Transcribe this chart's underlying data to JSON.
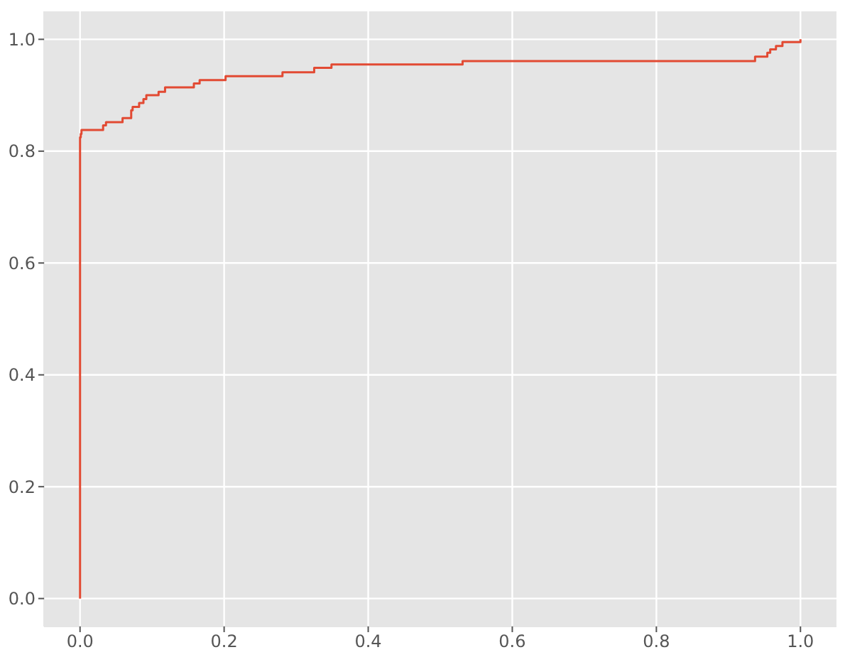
{
  "chart_data": {
    "type": "step",
    "x": [
      0,
      0,
      0.001,
      0.002,
      0.032,
      0.036,
      0.059,
      0.071,
      0.073,
      0.082,
      0.088,
      0.092,
      0.109,
      0.118,
      0.158,
      0.166,
      0.202,
      0.281,
      0.325,
      0.349,
      0.531,
      0.937,
      0.954,
      0.958,
      0.966,
      0.975,
      1.0
    ],
    "series": [
      {
        "color": "#e24a33",
        "values": [
          0,
          0.825,
          0.831,
          0.838,
          0.846,
          0.852,
          0.859,
          0.873,
          0.879,
          0.886,
          0.893,
          0.9,
          0.906,
          0.914,
          0.921,
          0.927,
          0.934,
          0.941,
          0.949,
          0.955,
          0.961,
          0.969,
          0.976,
          0.982,
          0.988,
          0.995,
          1.0
        ]
      }
    ],
    "xlim": [
      -0.05,
      1.05
    ],
    "ylim": [
      -0.05,
      1.05
    ],
    "xticks": [
      {
        "value": 0,
        "label": "0.0"
      },
      {
        "value": 0.2,
        "label": "0.2"
      },
      {
        "value": 0.4,
        "label": "0.4"
      },
      {
        "value": 0.6,
        "label": "0.6"
      },
      {
        "value": 0.8,
        "label": "0.8"
      },
      {
        "value": 1,
        "label": "1.0"
      }
    ],
    "yticks": [
      {
        "value": 0,
        "label": "0.0"
      },
      {
        "value": 0.2,
        "label": "0.2"
      },
      {
        "value": 0.4,
        "label": "0.4"
      },
      {
        "value": 0.6,
        "label": "0.6"
      },
      {
        "value": 0.8,
        "label": "0.8"
      },
      {
        "value": 1,
        "label": "1.0"
      }
    ],
    "grid": true,
    "marker": "none",
    "line_style": "solid"
  }
}
